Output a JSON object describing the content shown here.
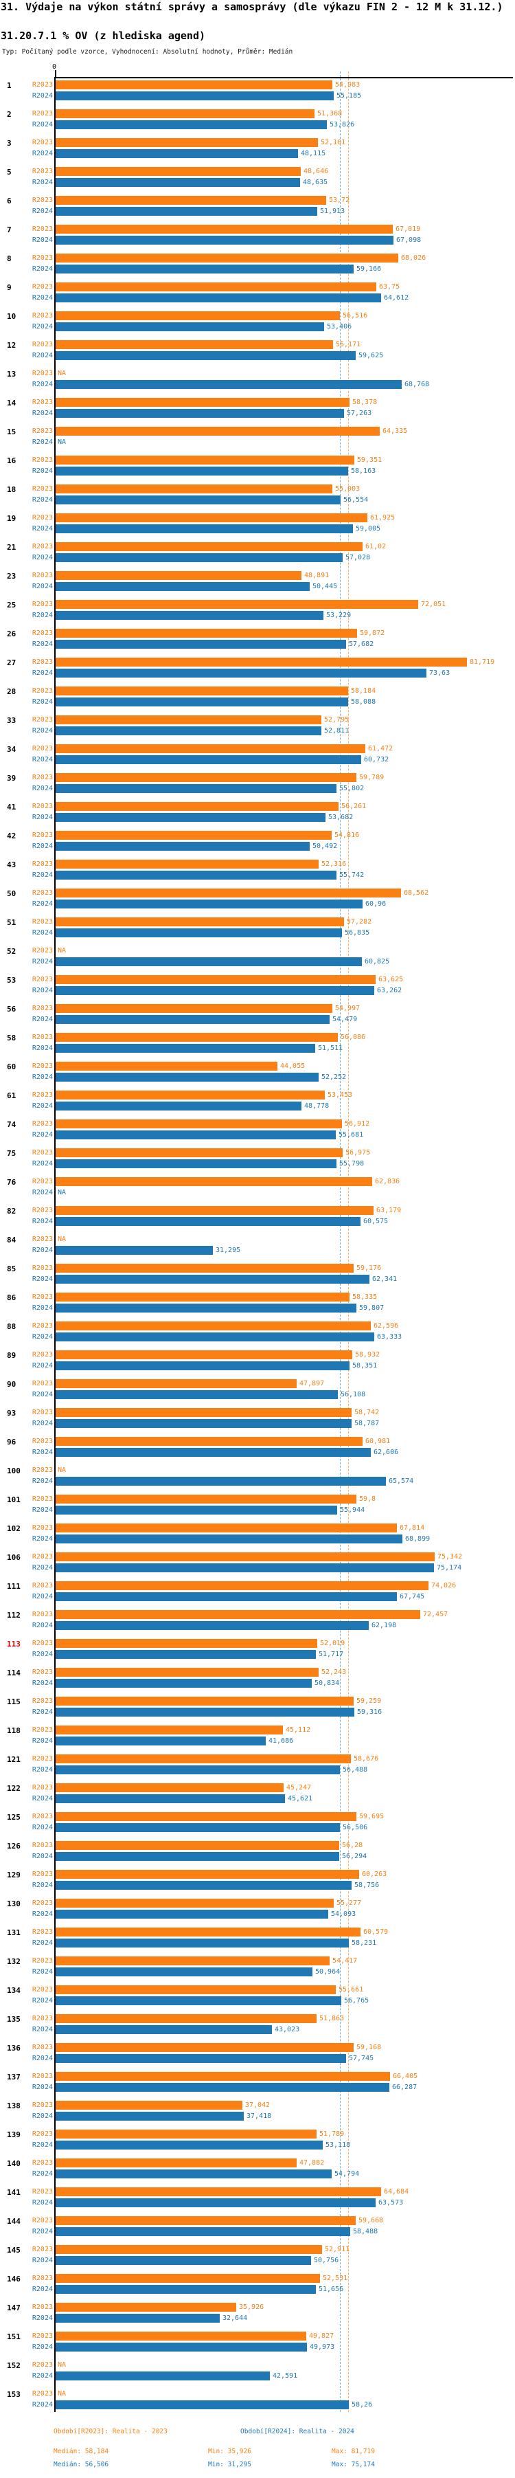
{
  "title": "31. Výdaje na výkon státní správy a samosprávy (dle výkazu FIN 2 - 12 M k 31.12.)",
  "subtitle": "31.20.7.1 % OV (z hlediska agend)",
  "meta": "Typ: Počítaný podle vzorce, Vyhodnocení: Absolutní hodnoty, Průměr: Medián",
  "colors": {
    "bar_2023": "#FA8014",
    "bar_2024": "#1F77B4",
    "median_line_2023": "#FDAE6B",
    "median_line_2024": "#6BAED6",
    "highlight_category": "#E60000",
    "axis": "#000000"
  },
  "chart_data": {
    "type": "bar",
    "orientation": "horizontal",
    "grouped": true,
    "na_label": "NA",
    "value_format": "decimal-comma",
    "x_axis": {
      "zero_label": "0",
      "min": 0,
      "max": 90,
      "grid": false
    },
    "highlight_categories": [
      "113"
    ],
    "categories": [
      "1",
      "2",
      "3",
      "5",
      "6",
      "7",
      "8",
      "9",
      "10",
      "12",
      "13",
      "14",
      "15",
      "16",
      "18",
      "19",
      "21",
      "23",
      "25",
      "26",
      "27",
      "28",
      "33",
      "34",
      "39",
      "41",
      "42",
      "43",
      "50",
      "51",
      "52",
      "53",
      "56",
      "58",
      "60",
      "61",
      "74",
      "75",
      "76",
      "82",
      "84",
      "85",
      "86",
      "88",
      "89",
      "90",
      "93",
      "96",
      "100",
      "101",
      "102",
      "106",
      "111",
      "112",
      "113",
      "114",
      "115",
      "118",
      "121",
      "122",
      "125",
      "126",
      "129",
      "130",
      "131",
      "132",
      "134",
      "135",
      "136",
      "137",
      "138",
      "139",
      "140",
      "141",
      "144",
      "145",
      "146",
      "147",
      "151",
      "152",
      "153"
    ],
    "series": [
      {
        "name": "R2023",
        "period": "Realita - 2023",
        "median": 58.184,
        "min": 35.926,
        "max": 81.719,
        "values": [
          54.983,
          51.368,
          52.161,
          48.646,
          53.72,
          67.019,
          68.026,
          63.75,
          56.516,
          55.171,
          null,
          58.378,
          64.335,
          59.351,
          55.003,
          61.925,
          61.02,
          48.891,
          72.051,
          59.872,
          81.719,
          58.184,
          52.795,
          61.472,
          59.789,
          56.261,
          54.816,
          52.316,
          68.562,
          57.282,
          null,
          63.625,
          54.997,
          56.086,
          44.055,
          53.453,
          56.912,
          56.975,
          62.836,
          63.179,
          null,
          59.176,
          58.335,
          62.596,
          58.932,
          47.897,
          58.742,
          60.981,
          null,
          59.8,
          67.814,
          75.342,
          74.026,
          72.457,
          52.019,
          52.243,
          59.259,
          45.112,
          58.676,
          45.247,
          59.695,
          56.28,
          60.263,
          55.277,
          60.579,
          54.417,
          55.661,
          51.863,
          59.168,
          66.405,
          37.042,
          51.789,
          47.882,
          64.684,
          59.668,
          52.911,
          52.531,
          35.926,
          49.827,
          null,
          null
        ]
      },
      {
        "name": "R2024",
        "period": "Realita - 2024",
        "median": 56.506,
        "min": 31.295,
        "max": 75.174,
        "values": [
          55.185,
          53.826,
          48.115,
          48.635,
          51.913,
          67.098,
          59.166,
          64.612,
          53.406,
          59.625,
          68.768,
          57.263,
          null,
          58.163,
          56.554,
          59.005,
          57.028,
          50.445,
          53.229,
          57.682,
          73.63,
          58.088,
          52.811,
          60.732,
          55.802,
          53.682,
          50.492,
          55.742,
          60.96,
          56.835,
          60.825,
          63.262,
          54.479,
          51.511,
          52.252,
          48.778,
          55.681,
          55.798,
          null,
          60.575,
          31.295,
          62.341,
          59.807,
          63.333,
          58.351,
          56.108,
          58.787,
          62.606,
          65.574,
          55.944,
          68.899,
          75.174,
          67.745,
          62.198,
          51.717,
          50.834,
          59.316,
          41.686,
          56.488,
          45.621,
          56.506,
          56.294,
          58.756,
          54.093,
          58.231,
          50.964,
          56.765,
          43.023,
          57.745,
          66.287,
          37.418,
          53.118,
          54.794,
          63.573,
          58.488,
          50.756,
          51.656,
          32.644,
          49.973,
          42.591,
          58.26
        ]
      }
    ]
  },
  "legend": {
    "r2023": {
      "period": "Období[R2023]: Realita - 2023",
      "median": "Medián: 58,184",
      "min": "Min: 35,926",
      "max": "Max: 81,719"
    },
    "r2024": {
      "period": "Období[R2024]: Realita - 2024",
      "median": "Medián: 56,506",
      "min": "Min: 31,295",
      "max": "Max: 75,174"
    }
  }
}
